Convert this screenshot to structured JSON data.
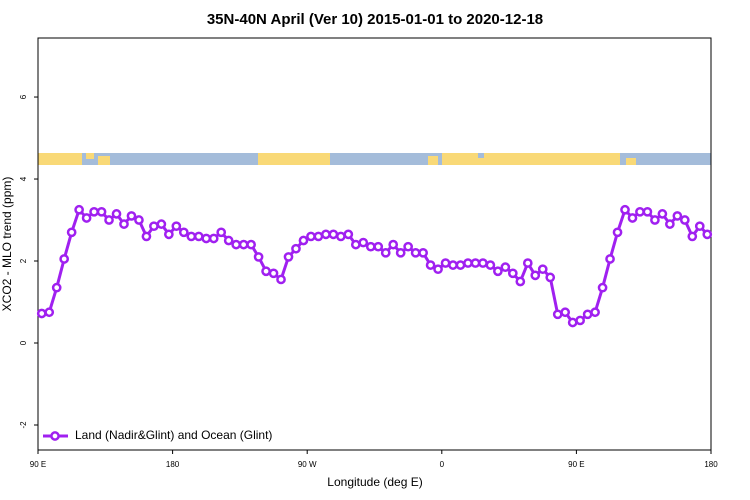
{
  "chart_data": {
    "type": "line",
    "title": "35N-40N April (Ver 10)   2015-01-01 to 2020-12-18",
    "xlabel": "Longitude (deg E)",
    "ylabel": "XCO2 - MLO trend (ppm)",
    "xlim": [
      90,
      540
    ],
    "ylim": [
      -2.61,
      7.44
    ],
    "xticks": [
      {
        "value": 90,
        "label": "90 E"
      },
      180,
      {
        "value": 270,
        "label": "90 W"
      },
      {
        "value": 360,
        "label": "0"
      },
      {
        "value": 450,
        "label": "90 E"
      },
      {
        "value": 540,
        "label": "180"
      }
    ],
    "yticks": [
      -2,
      0,
      2,
      4,
      6
    ],
    "legend": "bottomleft",
    "x": [
      92.5,
      97.5,
      102.5,
      107.5,
      112.5,
      117.5,
      122.5,
      127.5,
      132.5,
      137.5,
      142.5,
      147.5,
      152.5,
      157.5,
      162.5,
      167.5,
      172.5,
      177.5,
      182.5,
      187.5,
      192.5,
      197.5,
      202.5,
      207.5,
      212.5,
      217.5,
      222.5,
      227.5,
      232.5,
      237.5,
      242.5,
      247.5,
      252.5,
      257.5,
      262.5,
      267.5,
      272.5,
      277.5,
      282.5,
      287.5,
      292.5,
      297.5,
      302.5,
      307.5,
      312.5,
      317.5,
      322.5,
      327.5,
      332.5,
      337.5,
      342.5,
      347.5,
      352.5,
      357.5,
      362.5,
      367.5,
      372.5,
      377.5,
      382.5,
      387.5,
      392.5,
      397.5,
      402.5,
      407.5,
      412.5,
      417.5,
      422.5,
      427.5,
      432.5,
      437.5,
      442.5,
      447.5,
      452.5,
      457.5,
      462.5,
      467.5,
      472.5,
      477.5,
      482.5,
      487.5,
      492.5,
      497.5,
      502.5,
      507.5,
      512.5,
      517.5,
      522.5,
      527.5,
      532.5,
      537.5
    ],
    "series": [
      {
        "name": "Land (Nadir&Glint) and Ocean (Glint)",
        "color": "#a020f0",
        "values": [
          0.72,
          0.75,
          1.35,
          2.05,
          2.7,
          3.25,
          3.05,
          3.2,
          3.2,
          3.0,
          3.15,
          2.9,
          3.1,
          3.0,
          2.6,
          2.85,
          2.9,
          2.65,
          2.85,
          2.7,
          2.6,
          2.6,
          2.55,
          2.55,
          2.7,
          2.5,
          2.4,
          2.4,
          2.4,
          2.1,
          1.75,
          1.7,
          1.55,
          2.1,
          2.3,
          2.5,
          2.6,
          2.6,
          2.65,
          2.65,
          2.6,
          2.65,
          2.4,
          2.45,
          2.35,
          2.35,
          2.2,
          2.4,
          2.2,
          2.35,
          2.2,
          2.2,
          1.9,
          1.8,
          1.95,
          1.9,
          1.9,
          1.95,
          1.95,
          1.95,
          1.9,
          1.75,
          1.85,
          1.7,
          1.5,
          1.95,
          1.65,
          1.8,
          1.6,
          0.7,
          0.75,
          0.5,
          0.55,
          0.7,
          0.75,
          1.35,
          2.05,
          2.7,
          3.25,
          3.05,
          3.2,
          3.2,
          3.0,
          3.15,
          2.9,
          3.1,
          3.0,
          2.6,
          2.85,
          2.65
        ]
      }
    ]
  }
}
